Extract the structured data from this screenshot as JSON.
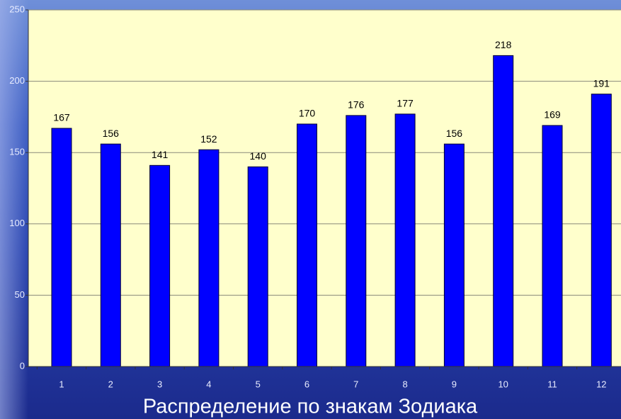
{
  "chart_data": {
    "type": "bar",
    "title": "Распределение по знакам Зодиака",
    "categories": [
      "1",
      "2",
      "3",
      "4",
      "5",
      "6",
      "7",
      "8",
      "9",
      "10",
      "11",
      "12"
    ],
    "values": [
      167,
      156,
      141,
      152,
      140,
      170,
      176,
      177,
      156,
      218,
      169,
      191
    ],
    "color": "#0000ff",
    "ylim": [
      0,
      250
    ],
    "yticks": [
      0,
      50,
      100,
      150,
      200,
      250
    ],
    "grid": true
  }
}
